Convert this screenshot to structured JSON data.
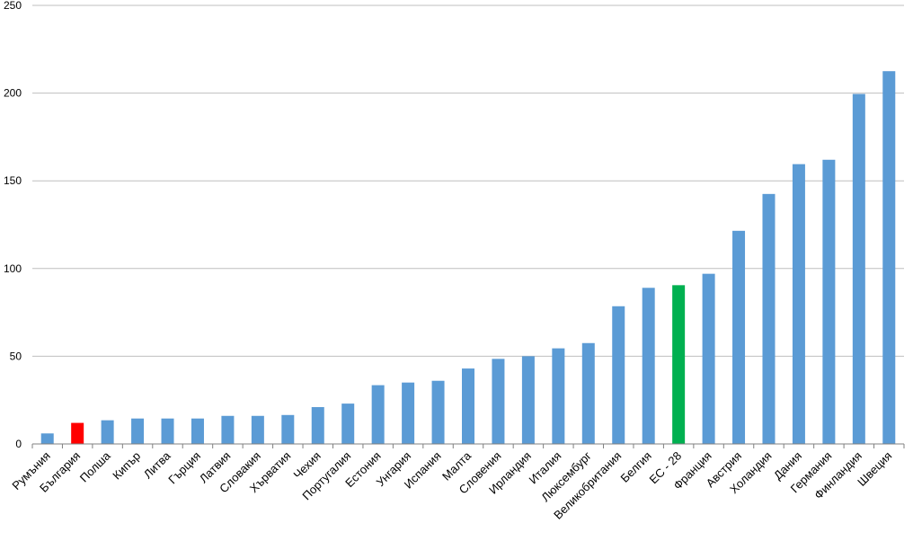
{
  "chart_data": {
    "type": "bar",
    "title": "",
    "xlabel": "",
    "ylabel": "",
    "ylim": [
      0,
      250
    ],
    "yticks": [
      0,
      50,
      100,
      150,
      200,
      250
    ],
    "grid": true,
    "legend": "none",
    "categories": [
      "Румъния",
      "България",
      "Полша",
      "Кипър",
      "Литва",
      "Гърция",
      "Латвия",
      "Словакия",
      "Хърватия",
      "Чехия",
      "Португалия",
      "Естония",
      "Унгария",
      "Испания",
      "Малта",
      "Словения",
      "Ирландия",
      "Италия",
      "Люксембург",
      "Великобритания",
      "Белгия",
      "ЕС - 28",
      "Франция",
      "Австрия",
      "Холандия",
      "Дания",
      "Германия",
      "Финландия",
      "Швеция"
    ],
    "values": [
      6,
      12,
      13.5,
      14.5,
      14.5,
      14.5,
      16,
      16,
      16.5,
      21,
      23,
      33.5,
      35,
      36,
      43,
      48.5,
      50,
      54.5,
      57.5,
      78.5,
      89,
      90.5,
      97,
      121.5,
      142.5,
      159.5,
      162,
      199.5,
      212.5
    ],
    "colors": {
      "default": "#5B9BD5",
      "highlight_country": "#FF0000",
      "eu_average": "#00B050",
      "grid": "#BFBFBF",
      "axis": "#808080"
    },
    "highlight_categories": {
      "България": "highlight_country",
      "ЕС - 28": "eu_average"
    }
  }
}
